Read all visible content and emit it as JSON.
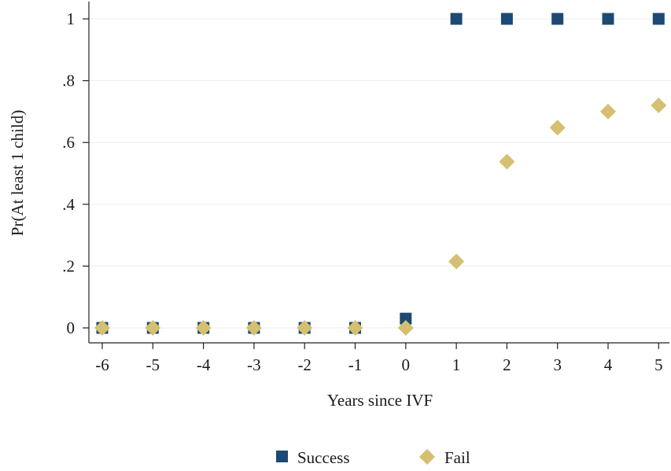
{
  "chart_data": {
    "type": "scatter",
    "xlabel": "Years since IVF",
    "ylabel": "Pr(At least 1 child)",
    "x": [
      -6,
      -5,
      -4,
      -3,
      -2,
      -1,
      0,
      1,
      2,
      3,
      4,
      5
    ],
    "xlim": [
      -6,
      5
    ],
    "ylim": [
      0,
      1
    ],
    "x_ticks": [
      -6,
      -5,
      -4,
      -3,
      -2,
      -1,
      0,
      1,
      2,
      3,
      4,
      5
    ],
    "x_tick_labels": [
      "-6",
      "-5",
      "-4",
      "-3",
      "-2",
      "-1",
      "0",
      "1",
      "2",
      "3",
      "4",
      "5"
    ],
    "y_ticks": [
      0,
      0.2,
      0.4,
      0.6,
      0.8,
      1
    ],
    "y_tick_labels": [
      "0",
      ".2",
      ".4",
      ".6",
      ".8",
      "1"
    ],
    "grid": "horizontal",
    "legend_position": "bottom",
    "series": [
      {
        "name": "Success",
        "marker": "square",
        "color": "#1c4a73",
        "values": [
          0,
          0,
          0,
          0,
          0,
          0,
          0.03,
          1,
          1,
          1,
          1,
          1
        ]
      },
      {
        "name": "Fail",
        "marker": "diamond",
        "color": "#d4c070",
        "values": [
          0,
          0,
          0,
          0,
          0,
          0,
          0,
          0.215,
          0.538,
          0.648,
          0.7,
          0.72
        ]
      }
    ]
  }
}
